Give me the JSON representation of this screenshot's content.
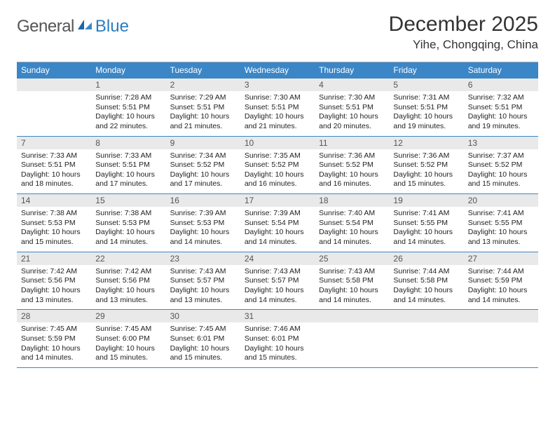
{
  "brand": {
    "name_part1": "General",
    "name_part2": "Blue"
  },
  "title": "December 2025",
  "location": "Yihe, Chongqing, China",
  "colors": {
    "header_bg": "#3b86c7",
    "header_text": "#ffffff",
    "daynum_bg": "#e9e9e9",
    "week_border": "#3b86c7",
    "body_text": "#222222",
    "logo_gray": "#555555",
    "logo_blue": "#2a7dc1"
  },
  "typography": {
    "title_fontsize": 30,
    "location_fontsize": 17,
    "header_fontsize": 12,
    "daynum_fontsize": 12,
    "detail_fontsize": 10.5
  },
  "day_names": [
    "Sunday",
    "Monday",
    "Tuesday",
    "Wednesday",
    "Thursday",
    "Friday",
    "Saturday"
  ],
  "weeks": [
    [
      {
        "day": "",
        "sunrise": "",
        "sunset": "",
        "daylight": ""
      },
      {
        "day": "1",
        "sunrise": "Sunrise: 7:28 AM",
        "sunset": "Sunset: 5:51 PM",
        "daylight": "Daylight: 10 hours and 22 minutes."
      },
      {
        "day": "2",
        "sunrise": "Sunrise: 7:29 AM",
        "sunset": "Sunset: 5:51 PM",
        "daylight": "Daylight: 10 hours and 21 minutes."
      },
      {
        "day": "3",
        "sunrise": "Sunrise: 7:30 AM",
        "sunset": "Sunset: 5:51 PM",
        "daylight": "Daylight: 10 hours and 21 minutes."
      },
      {
        "day": "4",
        "sunrise": "Sunrise: 7:30 AM",
        "sunset": "Sunset: 5:51 PM",
        "daylight": "Daylight: 10 hours and 20 minutes."
      },
      {
        "day": "5",
        "sunrise": "Sunrise: 7:31 AM",
        "sunset": "Sunset: 5:51 PM",
        "daylight": "Daylight: 10 hours and 19 minutes."
      },
      {
        "day": "6",
        "sunrise": "Sunrise: 7:32 AM",
        "sunset": "Sunset: 5:51 PM",
        "daylight": "Daylight: 10 hours and 19 minutes."
      }
    ],
    [
      {
        "day": "7",
        "sunrise": "Sunrise: 7:33 AM",
        "sunset": "Sunset: 5:51 PM",
        "daylight": "Daylight: 10 hours and 18 minutes."
      },
      {
        "day": "8",
        "sunrise": "Sunrise: 7:33 AM",
        "sunset": "Sunset: 5:51 PM",
        "daylight": "Daylight: 10 hours and 17 minutes."
      },
      {
        "day": "9",
        "sunrise": "Sunrise: 7:34 AM",
        "sunset": "Sunset: 5:52 PM",
        "daylight": "Daylight: 10 hours and 17 minutes."
      },
      {
        "day": "10",
        "sunrise": "Sunrise: 7:35 AM",
        "sunset": "Sunset: 5:52 PM",
        "daylight": "Daylight: 10 hours and 16 minutes."
      },
      {
        "day": "11",
        "sunrise": "Sunrise: 7:36 AM",
        "sunset": "Sunset: 5:52 PM",
        "daylight": "Daylight: 10 hours and 16 minutes."
      },
      {
        "day": "12",
        "sunrise": "Sunrise: 7:36 AM",
        "sunset": "Sunset: 5:52 PM",
        "daylight": "Daylight: 10 hours and 15 minutes."
      },
      {
        "day": "13",
        "sunrise": "Sunrise: 7:37 AM",
        "sunset": "Sunset: 5:52 PM",
        "daylight": "Daylight: 10 hours and 15 minutes."
      }
    ],
    [
      {
        "day": "14",
        "sunrise": "Sunrise: 7:38 AM",
        "sunset": "Sunset: 5:53 PM",
        "daylight": "Daylight: 10 hours and 15 minutes."
      },
      {
        "day": "15",
        "sunrise": "Sunrise: 7:38 AM",
        "sunset": "Sunset: 5:53 PM",
        "daylight": "Daylight: 10 hours and 14 minutes."
      },
      {
        "day": "16",
        "sunrise": "Sunrise: 7:39 AM",
        "sunset": "Sunset: 5:53 PM",
        "daylight": "Daylight: 10 hours and 14 minutes."
      },
      {
        "day": "17",
        "sunrise": "Sunrise: 7:39 AM",
        "sunset": "Sunset: 5:54 PM",
        "daylight": "Daylight: 10 hours and 14 minutes."
      },
      {
        "day": "18",
        "sunrise": "Sunrise: 7:40 AM",
        "sunset": "Sunset: 5:54 PM",
        "daylight": "Daylight: 10 hours and 14 minutes."
      },
      {
        "day": "19",
        "sunrise": "Sunrise: 7:41 AM",
        "sunset": "Sunset: 5:55 PM",
        "daylight": "Daylight: 10 hours and 14 minutes."
      },
      {
        "day": "20",
        "sunrise": "Sunrise: 7:41 AM",
        "sunset": "Sunset: 5:55 PM",
        "daylight": "Daylight: 10 hours and 13 minutes."
      }
    ],
    [
      {
        "day": "21",
        "sunrise": "Sunrise: 7:42 AM",
        "sunset": "Sunset: 5:56 PM",
        "daylight": "Daylight: 10 hours and 13 minutes."
      },
      {
        "day": "22",
        "sunrise": "Sunrise: 7:42 AM",
        "sunset": "Sunset: 5:56 PM",
        "daylight": "Daylight: 10 hours and 13 minutes."
      },
      {
        "day": "23",
        "sunrise": "Sunrise: 7:43 AM",
        "sunset": "Sunset: 5:57 PM",
        "daylight": "Daylight: 10 hours and 13 minutes."
      },
      {
        "day": "24",
        "sunrise": "Sunrise: 7:43 AM",
        "sunset": "Sunset: 5:57 PM",
        "daylight": "Daylight: 10 hours and 14 minutes."
      },
      {
        "day": "25",
        "sunrise": "Sunrise: 7:43 AM",
        "sunset": "Sunset: 5:58 PM",
        "daylight": "Daylight: 10 hours and 14 minutes."
      },
      {
        "day": "26",
        "sunrise": "Sunrise: 7:44 AM",
        "sunset": "Sunset: 5:58 PM",
        "daylight": "Daylight: 10 hours and 14 minutes."
      },
      {
        "day": "27",
        "sunrise": "Sunrise: 7:44 AM",
        "sunset": "Sunset: 5:59 PM",
        "daylight": "Daylight: 10 hours and 14 minutes."
      }
    ],
    [
      {
        "day": "28",
        "sunrise": "Sunrise: 7:45 AM",
        "sunset": "Sunset: 5:59 PM",
        "daylight": "Daylight: 10 hours and 14 minutes."
      },
      {
        "day": "29",
        "sunrise": "Sunrise: 7:45 AM",
        "sunset": "Sunset: 6:00 PM",
        "daylight": "Daylight: 10 hours and 15 minutes."
      },
      {
        "day": "30",
        "sunrise": "Sunrise: 7:45 AM",
        "sunset": "Sunset: 6:01 PM",
        "daylight": "Daylight: 10 hours and 15 minutes."
      },
      {
        "day": "31",
        "sunrise": "Sunrise: 7:46 AM",
        "sunset": "Sunset: 6:01 PM",
        "daylight": "Daylight: 10 hours and 15 minutes."
      },
      {
        "day": "",
        "sunrise": "",
        "sunset": "",
        "daylight": ""
      },
      {
        "day": "",
        "sunrise": "",
        "sunset": "",
        "daylight": ""
      },
      {
        "day": "",
        "sunrise": "",
        "sunset": "",
        "daylight": ""
      }
    ]
  ]
}
